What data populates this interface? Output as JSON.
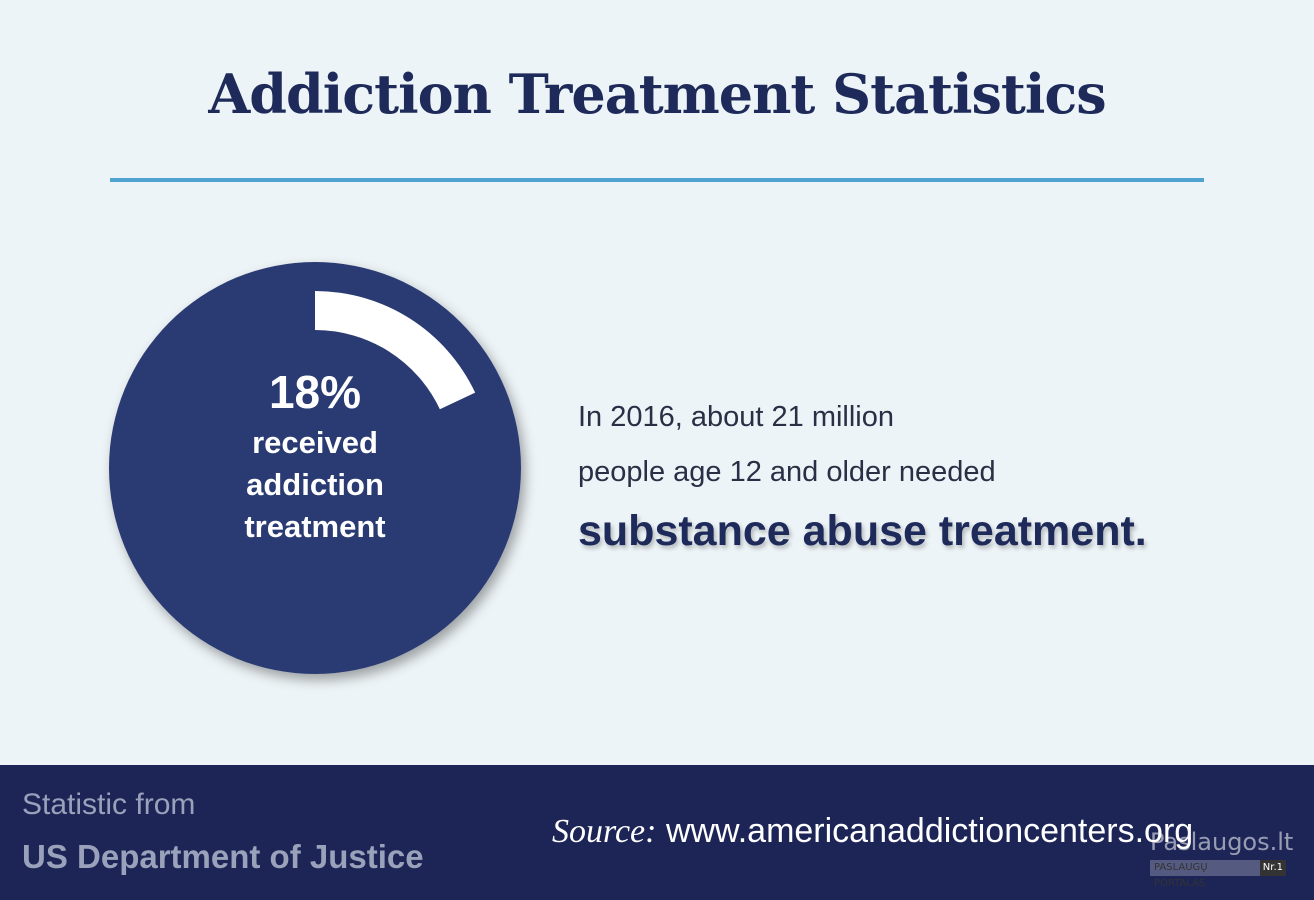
{
  "title": "Addiction Treatment Statistics",
  "stat": {
    "value": 18,
    "value_label": "18%",
    "caption": [
      "received",
      "addiction",
      "treatment"
    ]
  },
  "body": {
    "lines": [
      "In 2016, about 21 million",
      "people age 12 and older needed"
    ],
    "emphasis": "substance abuse treatment."
  },
  "footer": {
    "attribution": [
      "Statistic from",
      "US Department of Justice"
    ],
    "source_label": "Source:",
    "source_url": "www.americanaddictioncenters.org"
  },
  "watermark": {
    "name": "Paslaugos.lt",
    "tagline": "PASLAUGŲ PORTALAS",
    "rank": "Nr.1"
  }
}
